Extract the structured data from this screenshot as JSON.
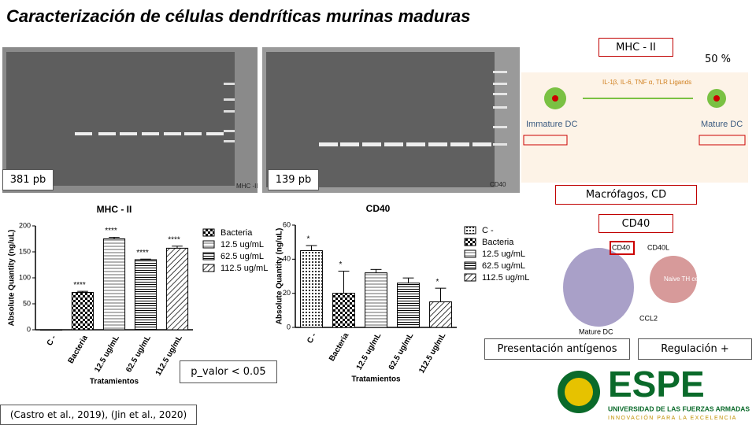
{
  "title": "Caracterización de células dendríticas murinas maduras",
  "gel_labels": [
    "381 pb",
    "139 pb"
  ],
  "gel_captions": [
    "MHC -II",
    "CD40"
  ],
  "boxes": {
    "mhc": "MHC - II",
    "percent": "50 %",
    "macro": "Macrófagos, CD",
    "cd40": "CD40",
    "presentacion": "Presentación antígenos",
    "regulacion": "Regulación +",
    "pvalue": "p_valor < 0.05"
  },
  "diagram": {
    "stimuli": "IL-1β, IL-6, TNF α, TLR Ligands",
    "immature": "Immature DC",
    "mature": "Mature DC",
    "cd40": "CD40",
    "cd40l": "CD40L",
    "naive": "Naive TH cell",
    "ccl2": "CCL2",
    "mature2": "Mature DC"
  },
  "logo": {
    "name": "ESPE",
    "university": "UNIVERSIDAD DE LAS FUERZAS ARMADAS",
    "motto": "INNOVACIÓN PARA LA EXCELENCIA"
  },
  "citation": "(Castro et al., 2019), (Jin et al., 2020)",
  "chart_data": [
    {
      "type": "bar",
      "title": "MHC - II",
      "y_label": "Absolute Quantity (ng/uL)",
      "x_label": "Tratamientos",
      "categories": [
        "C -",
        "Bacteria",
        "12.5 ug/mL",
        "62.5 ug/mL",
        "112.5 ug/mL"
      ],
      "values": [
        0,
        72,
        175,
        135,
        157
      ],
      "errors": [
        0,
        2,
        3,
        1,
        4
      ],
      "annotations": [
        null,
        "****",
        "****",
        "****",
        "****"
      ],
      "legend": [
        "Bacteria",
        "12.5 ug/mL",
        "62.5 ug/mL",
        "112.5 ug/mL"
      ],
      "ylim": [
        0,
        200
      ],
      "yticks": [
        0,
        50,
        100,
        150,
        200
      ]
    },
    {
      "type": "bar",
      "title": "CD40",
      "y_label": "Absolute Quantity (ng/uL)",
      "x_label": "Tratamientos",
      "categories": [
        "C -",
        "Bacteria",
        "12.5 ug/mL",
        "62.5 ug/mL",
        "112.5 ug/mL"
      ],
      "values": [
        45,
        20,
        32,
        26,
        15
      ],
      "errors": [
        3,
        13,
        2,
        3,
        8
      ],
      "annotations": [
        "*",
        "*",
        null,
        null,
        "*"
      ],
      "legend": [
        "C -",
        "Bacteria",
        "12.5 ug/mL",
        "62.5 ug/mL",
        "112.5 ug/mL"
      ],
      "ylim": [
        0,
        60
      ],
      "yticks": [
        0,
        20,
        40,
        60
      ]
    }
  ]
}
